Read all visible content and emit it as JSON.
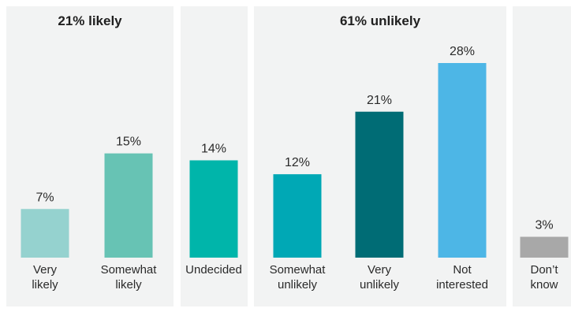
{
  "chart_data": {
    "type": "bar",
    "title": "",
    "xlabel": "",
    "ylabel": "",
    "ylim": [
      0,
      30
    ],
    "grid": false,
    "groups": [
      {
        "label": "21% likely",
        "categories": [
          0,
          1
        ]
      },
      {
        "label": "",
        "categories": [
          2
        ]
      },
      {
        "label": "61% unlikely",
        "categories": [
          3,
          4,
          5
        ]
      },
      {
        "label": "",
        "categories": [
          6
        ]
      }
    ],
    "categories": [
      [
        "Very",
        "likely"
      ],
      [
        "Somewhat",
        "likely"
      ],
      [
        "Undecided"
      ],
      [
        "Somewhat",
        "unlikely"
      ],
      [
        "Very",
        "unlikely"
      ],
      [
        "Not",
        "interested"
      ],
      [
        "Don’t",
        "know"
      ]
    ],
    "values": [
      7,
      15,
      14,
      12,
      21,
      28,
      3
    ],
    "value_labels": [
      "7%",
      "15%",
      "14%",
      "12%",
      "21%",
      "28%",
      "3%"
    ],
    "colors": [
      "#95d2cf",
      "#67c3b4",
      "#00b5aa",
      "#00a8b5",
      "#006c75",
      "#4db6e6",
      "#a8a8a8"
    ]
  }
}
